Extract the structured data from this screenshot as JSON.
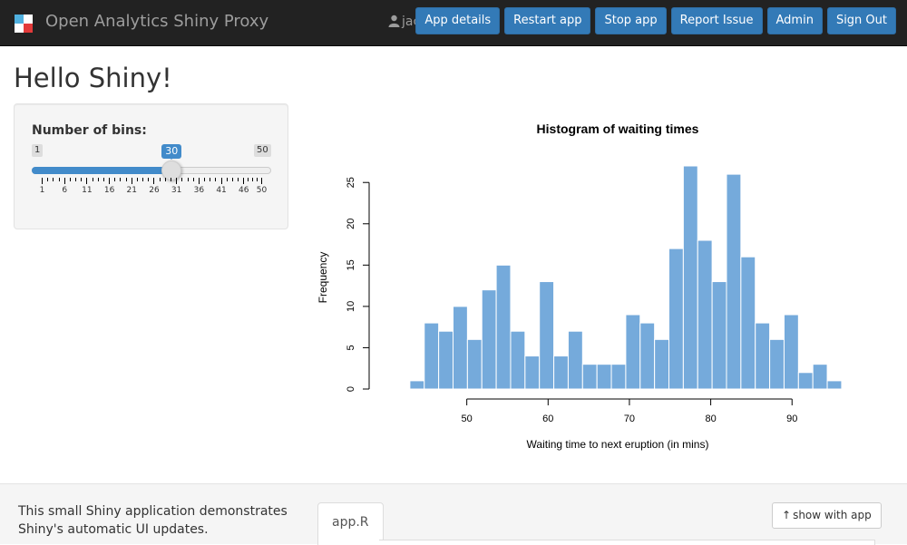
{
  "navbar": {
    "brand": "Open Analytics Shiny Proxy",
    "user": "jack",
    "buttons": [
      "App details",
      "Restart app",
      "Stop app",
      "Report Issue",
      "Admin",
      "Sign Out"
    ]
  },
  "page": {
    "title": "Hello Shiny!"
  },
  "slider": {
    "label": "Number of bins:",
    "min": 1,
    "max": 50,
    "value": 30,
    "min_label": "1",
    "max_label": "50",
    "value_label": "30",
    "tick_labels": [
      "1",
      "6",
      "11",
      "16",
      "21",
      "26",
      "31",
      "36",
      "41",
      "46",
      "50"
    ]
  },
  "chart_data": {
    "type": "bar",
    "title": "Histogram of waiting times",
    "xlabel": "Waiting time to next eruption (in mins)",
    "ylabel": "Frequency",
    "bin_width": 1.77,
    "bin_start": 43,
    "values": [
      1,
      8,
      7,
      10,
      6,
      12,
      15,
      7,
      4,
      13,
      4,
      7,
      3,
      3,
      3,
      9,
      8,
      6,
      17,
      27,
      18,
      13,
      26,
      16,
      8,
      6,
      9,
      2,
      3,
      1
    ],
    "xticks": [
      50,
      60,
      70,
      80,
      90
    ],
    "yticks": [
      0,
      5,
      10,
      15,
      20,
      25
    ],
    "xlim": [
      40,
      97
    ],
    "ylim": [
      0,
      27
    ],
    "bar_color": "#75aadb"
  },
  "bottom": {
    "description": "This small Shiny application demonstrates Shiny's automatic UI updates.",
    "tab_label": "app.R",
    "show_button": "show with app"
  },
  "colors": {
    "primary": "#337ab7",
    "navbar": "#222222",
    "slider": "#428bca"
  }
}
